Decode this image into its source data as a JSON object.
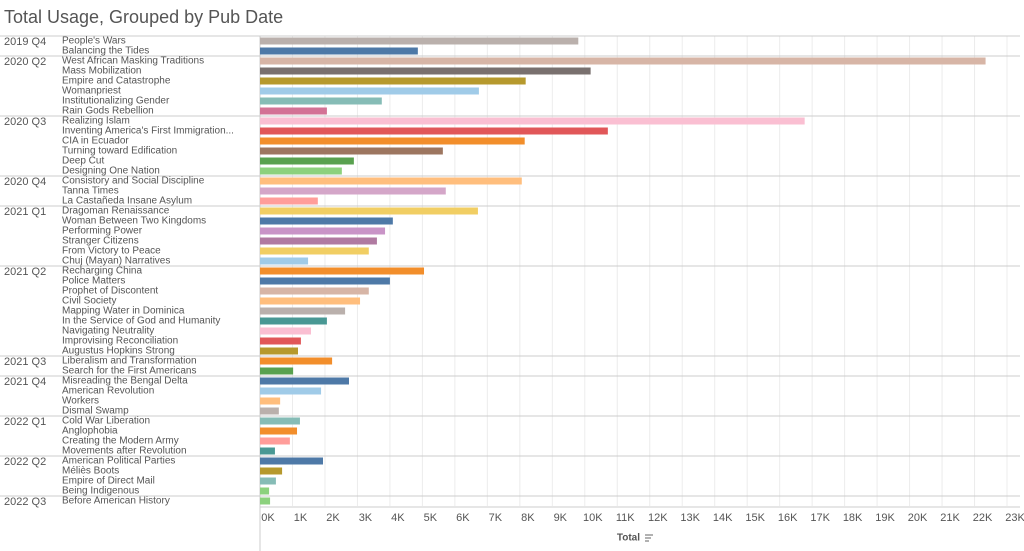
{
  "chart_data": {
    "type": "bar",
    "orientation": "horizontal",
    "title": "Total Usage, Grouped by Pub Date",
    "x_label": "Total",
    "groups": [
      {
        "name": "2019 Q4",
        "categories": [
          "People's Wars",
          "Balancing the Tides"
        ],
        "values": [
          9800,
          4860
        ],
        "colors": [
          "#bab0ac",
          "#4e79a7"
        ]
      },
      {
        "name": "2020 Q2",
        "categories": [
          "West African Masking Traditions",
          "Mass Mobilization",
          "Empire and Catastrophe",
          "Womanpriest",
          "Institutionalizing Gender",
          "Rain Gods Rebellion"
        ],
        "values": [
          22340,
          10180,
          8180,
          6740,
          3750,
          2060
        ],
        "colors": [
          "#d7b5a6",
          "#79706e",
          "#b6992d",
          "#a0cbe8",
          "#86bcb6",
          "#d37295"
        ]
      },
      {
        "name": "2020 Q3",
        "categories": [
          "Realizing Islam",
          "Inventing America's First Immigration...",
          "CIA in Ecuador",
          "Turning toward Edification",
          "Deep Cut",
          "Designing One Nation"
        ],
        "values": [
          16770,
          10710,
          8150,
          5630,
          2890,
          2520
        ],
        "colors": [
          "#fabfd2",
          "#e15759",
          "#f28e2b",
          "#9d7660",
          "#59a14f",
          "#8cd17d"
        ]
      },
      {
        "name": "2020 Q4",
        "categories": [
          "Consistory and Social Discipline",
          "Tanna Times",
          "La Castañeda Insane Asylum"
        ],
        "values": [
          8060,
          5720,
          1780
        ],
        "colors": [
          "#ffbe7d",
          "#d4a6c8",
          "#ff9d9a"
        ]
      },
      {
        "name": "2021 Q1",
        "categories": [
          "Dragoman Renaissance",
          "Woman Between Two Kingdoms",
          "Performing Power",
          "Stranger Citizens",
          "From Victory to Peace",
          "Chuj (Mayan) Narratives"
        ],
        "values": [
          6710,
          4090,
          3850,
          3600,
          3350,
          1480
        ],
        "colors": [
          "#f1ce63",
          "#4e79a7",
          "#c994c7",
          "#b07aa1",
          "#f1ce63",
          "#a0cbe8"
        ]
      },
      {
        "name": "2021 Q2",
        "categories": [
          "Recharging China",
          "Police Matters",
          "Prophet of Discontent",
          "Civil Society",
          "Mapping Water in Dominica",
          "In the Service of God and Humanity",
          "Navigating Neutrality",
          "Improvising Reconciliation",
          "Augustus Hopkins Strong"
        ],
        "values": [
          5050,
          4000,
          3350,
          3080,
          2620,
          2060,
          1570,
          1260,
          1170
        ],
        "colors": [
          "#f28e2b",
          "#4e79a7",
          "#d7b5a6",
          "#ffbe7d",
          "#bab0ac",
          "#499894",
          "#fabfd2",
          "#e15759",
          "#b6992d"
        ]
      },
      {
        "name": "2021 Q3",
        "categories": [
          "Liberalism and Transformation",
          "Search for the First Americans"
        ],
        "values": [
          2220,
          1020
        ],
        "colors": [
          "#f28e2b",
          "#59a14f"
        ]
      },
      {
        "name": "2021 Q4",
        "categories": [
          "Misreading the Bengal Delta",
          "American Revolution",
          "Workers",
          "Dismal Swamp"
        ],
        "values": [
          2740,
          1880,
          620,
          580
        ],
        "colors": [
          "#4e79a7",
          "#a0cbe8",
          "#ffbe7d",
          "#bab0ac"
        ]
      },
      {
        "name": "2022 Q1",
        "categories": [
          "Cold War Liberation",
          "Anglophobia",
          "Creating the Modern Army",
          "Movements after Revolution"
        ],
        "values": [
          1230,
          1140,
          920,
          460
        ],
        "colors": [
          "#86bcb6",
          "#f28e2b",
          "#ff9d9a",
          "#499894"
        ]
      },
      {
        "name": "2022 Q2",
        "categories": [
          "American Political Parties",
          "Méliès Boots",
          "Empire of Direct Mail",
          "Being Indigenous"
        ],
        "values": [
          1940,
          680,
          490,
          280
        ],
        "colors": [
          "#4e79a7",
          "#b6992d",
          "#86bcb6",
          "#8cd17d"
        ]
      },
      {
        "name": "2022 Q3",
        "categories": [
          "Before American History"
        ],
        "values": [
          310
        ],
        "colors": [
          "#8cd17d"
        ]
      }
    ],
    "xlim": [
      0,
      23400
    ],
    "xticks": [
      {
        "value": 0,
        "label": "0K"
      },
      {
        "value": 1000,
        "label": "1K"
      },
      {
        "value": 2000,
        "label": "2K"
      },
      {
        "value": 3000,
        "label": "3K"
      },
      {
        "value": 4000,
        "label": "4K"
      },
      {
        "value": 5000,
        "label": "5K"
      },
      {
        "value": 6000,
        "label": "6K"
      },
      {
        "value": 7000,
        "label": "7K"
      },
      {
        "value": 8000,
        "label": "8K"
      },
      {
        "value": 9000,
        "label": "9K"
      },
      {
        "value": 10000,
        "label": "10K"
      },
      {
        "value": 11000,
        "label": "11K"
      },
      {
        "value": 12000,
        "label": "12K"
      },
      {
        "value": 13000,
        "label": "13K"
      },
      {
        "value": 14000,
        "label": "14K"
      },
      {
        "value": 15000,
        "label": "15K"
      },
      {
        "value": 16000,
        "label": "16K"
      },
      {
        "value": 17000,
        "label": "17K"
      },
      {
        "value": 18000,
        "label": "18K"
      },
      {
        "value": 19000,
        "label": "19K"
      },
      {
        "value": 20000,
        "label": "20K"
      },
      {
        "value": 21000,
        "label": "21K"
      },
      {
        "value": 22000,
        "label": "22K"
      },
      {
        "value": 23000,
        "label": "23K"
      }
    ],
    "grid": true
  }
}
